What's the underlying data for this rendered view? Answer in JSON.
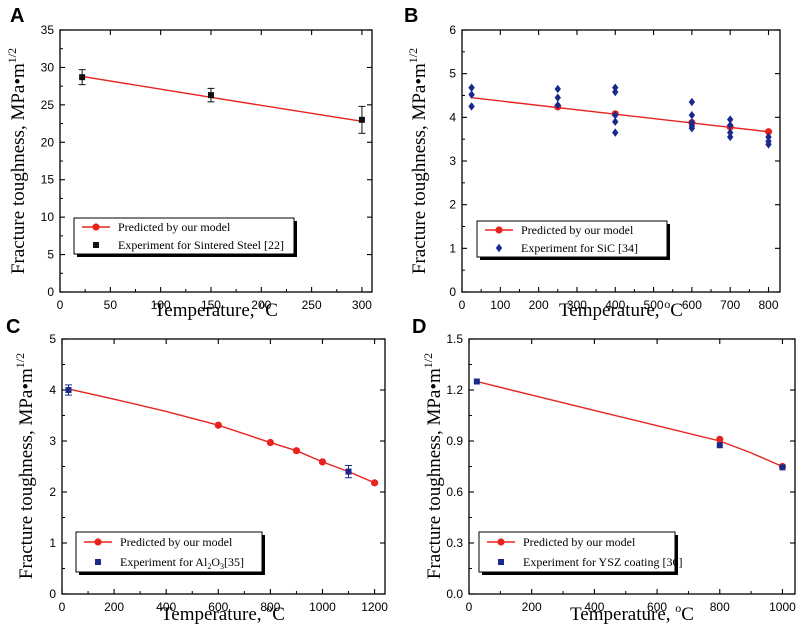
{
  "chart_data": [
    {
      "panel": "A",
      "type": "line",
      "xlabel": "Temperature, ",
      "xlabel_sup": "o",
      "xlabel_unit": "C",
      "ylabel": "Fracture toughness, MPa•m",
      "ylabel_sup": "1/2",
      "xlim": [
        0,
        310
      ],
      "ylim": [
        0,
        35
      ],
      "xticks": [
        0,
        50,
        100,
        150,
        200,
        250,
        300
      ],
      "yticks": [
        0,
        5,
        10,
        15,
        20,
        25,
        30,
        35
      ],
      "xtick_labels": [
        "0",
        "50",
        "100",
        "150",
        "200",
        "250",
        "300"
      ],
      "ytick_labels": [
        "0",
        "5",
        "10",
        "15",
        "20",
        "25",
        "30",
        "35"
      ],
      "series": [
        {
          "name": "Predicted by our model",
          "kind": "model",
          "color": "#e8231f",
          "x": [
            22,
            150,
            300
          ],
          "y": [
            28.8,
            26.0,
            22.8
          ],
          "points": [],
          "show_markers": false
        },
        {
          "name": "Experiment for Sintered Steel [22]",
          "kind": "experiment",
          "color": "#111111",
          "marker": "square",
          "x": [
            22,
            150,
            300
          ],
          "y": [
            28.7,
            26.3,
            23.0
          ],
          "err": [
            1.0,
            0.9,
            1.8
          ]
        }
      ],
      "legend_position": "bottom-left"
    },
    {
      "panel": "B",
      "type": "scatter",
      "xlabel": "Temperature, ",
      "xlabel_sup": "o",
      "xlabel_unit": "C",
      "ylabel": "Fracture toughness, MPa•m",
      "ylabel_sup": "1/2",
      "xlim": [
        0,
        830
      ],
      "ylim": [
        0,
        6
      ],
      "xticks": [
        0,
        100,
        200,
        300,
        400,
        500,
        600,
        700,
        800
      ],
      "yticks": [
        0,
        1,
        2,
        3,
        4,
        5,
        6
      ],
      "xtick_labels": [
        "0",
        "100",
        "200",
        "300",
        "400",
        "500",
        "600",
        "700",
        "800"
      ],
      "ytick_labels": [
        "0",
        "1",
        "2",
        "3",
        "4",
        "5",
        "6"
      ],
      "series": [
        {
          "name": "Predicted by our model",
          "kind": "model",
          "color": "#e8231f",
          "x": [
            25,
            800
          ],
          "y": [
            4.45,
            3.67
          ],
          "points": [
            [
              250,
              4.24
            ],
            [
              400,
              4.08
            ],
            [
              600,
              3.88
            ],
            [
              700,
              3.78
            ],
            [
              800,
              3.67
            ]
          ],
          "show_markers": true
        },
        {
          "name": "Experiment for SiC [34]",
          "kind": "experiment",
          "color": "#1a2a8c",
          "marker": "diamond",
          "x": [
            25,
            25,
            25,
            250,
            250,
            250,
            400,
            400,
            400,
            400,
            400,
            600,
            600,
            600,
            600,
            600,
            700,
            700,
            700,
            700,
            800,
            800,
            800
          ],
          "y": [
            4.68,
            4.52,
            4.25,
            4.65,
            4.45,
            4.28,
            4.68,
            4.58,
            4.05,
            3.9,
            3.65,
            4.35,
            4.05,
            3.88,
            3.8,
            3.75,
            3.95,
            3.82,
            3.65,
            3.55,
            3.55,
            3.45,
            3.38
          ]
        }
      ],
      "legend_position": "bottom-left"
    },
    {
      "panel": "C",
      "type": "line",
      "xlabel": "Temperature, ",
      "xlabel_sup": "o",
      "xlabel_unit": "C",
      "ylabel": "Fracture toughness, MPa•m",
      "ylabel_sup": "1/2",
      "xlim": [
        0,
        1240
      ],
      "ylim": [
        0,
        5
      ],
      "xticks": [
        0,
        200,
        400,
        600,
        800,
        1000,
        1200
      ],
      "yticks": [
        0,
        1,
        2,
        3,
        4,
        5
      ],
      "xtick_labels": [
        "0",
        "200",
        "400",
        "600",
        "800",
        "1000",
        "1200"
      ],
      "ytick_labels": [
        "0",
        "1",
        "2",
        "3",
        "4",
        "5"
      ],
      "series": [
        {
          "name": "Predicted by our model",
          "kind": "model",
          "color": "#e8231f",
          "x": [
            25,
            200,
            400,
            600,
            800,
            900,
            1000,
            1100,
            1200
          ],
          "y": [
            4.02,
            3.82,
            3.58,
            3.31,
            2.97,
            2.81,
            2.59,
            2.4,
            2.18
          ],
          "points": [
            [
              600,
              3.31
            ],
            [
              800,
              2.97
            ],
            [
              900,
              2.81
            ],
            [
              1000,
              2.59
            ],
            [
              1200,
              2.18
            ]
          ],
          "show_markers": true
        },
        {
          "name": "Experiment for Al",
          "name_sub": "2",
          "name_mid": "O",
          "name_sub2": "3",
          "name_tail": "[35]",
          "kind": "experiment",
          "color": "#1a2a8c",
          "marker": "square",
          "x": [
            25,
            1100
          ],
          "y": [
            4.0,
            2.4
          ],
          "err": [
            0.1,
            0.12
          ]
        }
      ],
      "legend_position": "bottom-left"
    },
    {
      "panel": "D",
      "type": "line",
      "xlabel": "Temperature, ",
      "xlabel_sup": "o",
      "xlabel_unit": "C",
      "ylabel": "Fracture toughness, MPa•m",
      "ylabel_sup": "1/2",
      "xlim": [
        0,
        1040
      ],
      "ylim": [
        0,
        1.5
      ],
      "xticks": [
        0,
        200,
        400,
        600,
        800,
        1000
      ],
      "yticks": [
        0,
        0.3,
        0.6,
        0.9,
        1.2,
        1.5
      ],
      "xtick_labels": [
        "0",
        "200",
        "400",
        "600",
        "800",
        "1000"
      ],
      "ytick_labels": [
        "0.0",
        "0.3",
        "0.6",
        "0.9",
        "1.2",
        "1.5"
      ],
      "series": [
        {
          "name": "Predicted by our model",
          "kind": "model",
          "color": "#e8231f",
          "x": [
            25,
            200,
            400,
            600,
            800,
            900,
            1000
          ],
          "y": [
            1.25,
            1.17,
            1.08,
            0.99,
            0.9,
            0.83,
            0.75
          ],
          "points": [
            [
              800,
              0.91
            ],
            [
              1000,
              0.75
            ]
          ],
          "show_markers": true
        },
        {
          "name": "Experiment for YSZ coating",
          "name_tail": "[36]",
          "kind": "experiment",
          "color": "#1a2a8c",
          "marker": "square",
          "x": [
            25,
            800,
            1000
          ],
          "y": [
            1.25,
            0.875,
            0.745
          ],
          "err": [
            0,
            0,
            0
          ]
        }
      ],
      "legend_position": "bottom-left"
    }
  ],
  "panel_labels": [
    "A",
    "B",
    "C",
    "D"
  ],
  "colors": {
    "model": "#e8231f",
    "exp_dark": "#111111",
    "exp_blue": "#1a2a8c",
    "axis": "#000000"
  }
}
